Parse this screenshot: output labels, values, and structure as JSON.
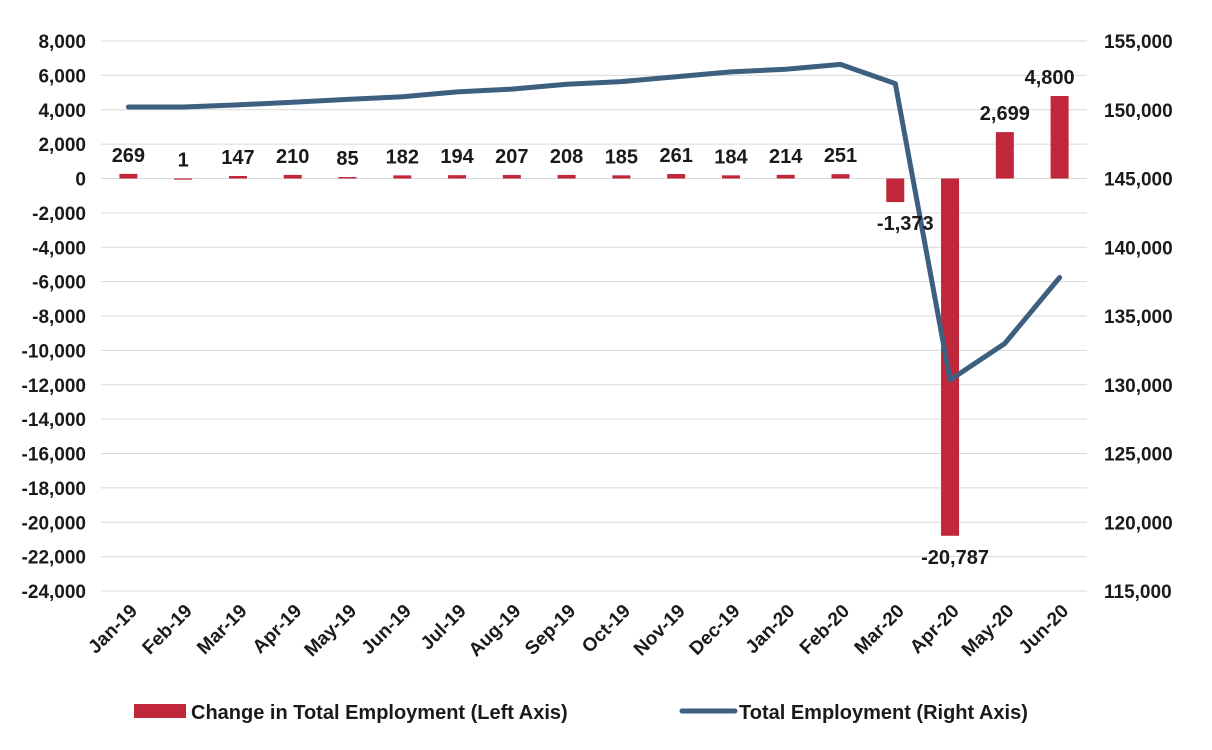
{
  "chart_data": {
    "type": "bar",
    "categories": [
      "Jan-19",
      "Feb-19",
      "Mar-19",
      "Apr-19",
      "May-19",
      "Jun-19",
      "Jul-19",
      "Aug-19",
      "Sep-19",
      "Oct-19",
      "Nov-19",
      "Dec-19",
      "Jan-20",
      "Feb-20",
      "Mar-20",
      "Apr-20",
      "May-20",
      "Jun-20"
    ],
    "series": [
      {
        "name": "Change in Total Employment (Left Axis)",
        "type": "bar",
        "axis": "left",
        "color": "#c0273a",
        "values": [
          269,
          1,
          147,
          210,
          85,
          182,
          194,
          207,
          208,
          185,
          261,
          184,
          214,
          251,
          -1373,
          -20787,
          2699,
          4800
        ],
        "labels": [
          "269",
          "1",
          "147",
          "210",
          "85",
          "182",
          "194",
          "207",
          "208",
          "185",
          "261",
          "184",
          "214",
          "251",
          "-1,373",
          "-20,787",
          "2,699",
          "4,800"
        ]
      },
      {
        "name": "Total Employment (Right Axis)",
        "type": "line",
        "axis": "right",
        "color": "#3d5f80",
        "values": [
          150200,
          150200,
          150350,
          150550,
          150750,
          150950,
          151300,
          151500,
          151850,
          152050,
          152400,
          152750,
          152950,
          153300,
          151900,
          130350,
          133000,
          137800
        ]
      }
    ],
    "y_left": {
      "ylim": [
        -24000,
        8000
      ],
      "ticks": [
        8000,
        6000,
        4000,
        2000,
        0,
        -2000,
        -4000,
        -6000,
        -8000,
        -10000,
        -12000,
        -14000,
        -16000,
        -18000,
        -20000,
        -22000,
        -24000
      ],
      "tick_labels": [
        "8,000",
        "6,000",
        "4,000",
        "2,000",
        "0",
        "-2,000",
        "-4,000",
        "-6,000",
        "-8,000",
        "-10,000",
        "-12,000",
        "-14,000",
        "-16,000",
        "-18,000",
        "-20,000",
        "-22,000",
        "-24,000"
      ]
    },
    "y_right": {
      "ylim": [
        115000,
        155000
      ],
      "ticks": [
        155000,
        150000,
        145000,
        140000,
        135000,
        130000,
        125000,
        120000,
        115000
      ],
      "tick_labels": [
        "155,000",
        "150,000",
        "145,000",
        "140,000",
        "135,000",
        "130,000",
        "125,000",
        "120,000",
        "115,000"
      ]
    },
    "grid": true,
    "legend_position": "bottom"
  }
}
